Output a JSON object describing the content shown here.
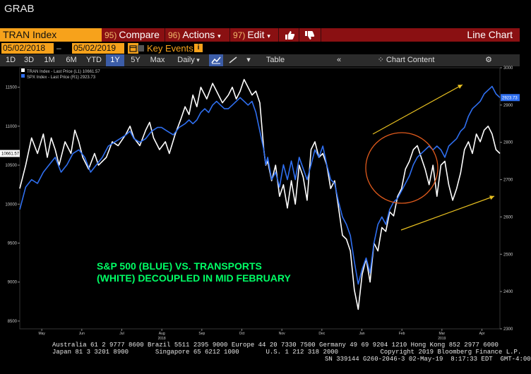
{
  "window": {
    "title": "GRAB"
  },
  "toolbar": {
    "ticker": "TRAN Index",
    "compare": {
      "num": "95)",
      "label": "Compare"
    },
    "actions": {
      "num": "96)",
      "label": "Actions"
    },
    "edit": {
      "num": "97)",
      "label": "Edit"
    },
    "chart_mode": "Line Chart"
  },
  "range": {
    "start": "05/02/2018",
    "end": "05/02/2019",
    "key_events": "Key Events"
  },
  "periods": [
    "1D",
    "3D",
    "1M",
    "6M",
    "YTD",
    "1Y",
    "5Y",
    "Max"
  ],
  "active_period": "1Y",
  "frequency": "Daily",
  "table_label": "Table",
  "chart_content_label": "Chart Content",
  "colors": {
    "tran": "#ffffff",
    "spx": "#2f6ff0",
    "annotation": "#00ff66",
    "arrow": "#e8c020",
    "circle": "#e05a1c",
    "menu_bar": "#8a1012",
    "ticker_bg": "#f7a21b"
  },
  "chart_data": {
    "type": "line",
    "legend": [
      "TRAN Index - Last Price (L1) 10661.57",
      "SPX Index - Last Price (R1) 2923.73"
    ],
    "x_labels": [
      "May",
      "Jun",
      "Jul",
      "Aug",
      "Sep",
      "Oct",
      "Nov",
      "Dec",
      "Jan",
      "Feb",
      "Mar",
      "Apr"
    ],
    "year_labels": [
      {
        "after": "Aug",
        "text": "2018"
      },
      {
        "after": "Mar",
        "text": "2019"
      }
    ],
    "left_axis": {
      "ticks": [
        8500,
        9000,
        9500,
        10000,
        10500,
        11000,
        11500
      ],
      "range": [
        8400,
        11750
      ],
      "last_label": "10661.57"
    },
    "right_axis": {
      "ticks": [
        2300,
        2400,
        2500,
        2600,
        2700,
        2800,
        2900,
        3000
      ],
      "range": [
        2300,
        3000
      ],
      "last_label": "2923.73"
    },
    "series": [
      {
        "name": "TRAN Index",
        "axis": "left",
        "points": [
          [
            0,
            10200
          ],
          [
            1.5,
            10500
          ],
          [
            3,
            10850
          ],
          [
            4.5,
            10650
          ],
          [
            6,
            10900
          ],
          [
            7,
            10600
          ],
          [
            8,
            10850
          ],
          [
            9,
            10700
          ],
          [
            10,
            10500
          ],
          [
            11.5,
            10800
          ],
          [
            13,
            10650
          ],
          [
            14,
            10950
          ],
          [
            15,
            10800
          ],
          [
            16,
            10600
          ],
          [
            17.5,
            10450
          ],
          [
            19,
            10650
          ],
          [
            20,
            10500
          ],
          [
            22,
            10600
          ],
          [
            23.5,
            10800
          ],
          [
            25,
            10750
          ],
          [
            27,
            10900
          ],
          [
            28,
            11000
          ],
          [
            29,
            10850
          ],
          [
            30.5,
            10750
          ],
          [
            32,
            10950
          ],
          [
            33,
            11050
          ],
          [
            34,
            10850
          ],
          [
            35.5,
            10700
          ],
          [
            37,
            10800
          ],
          [
            38,
            10650
          ],
          [
            39.5,
            10900
          ],
          [
            41,
            11100
          ],
          [
            42,
            11250
          ],
          [
            43,
            11150
          ],
          [
            44,
            11400
          ],
          [
            45,
            11250
          ],
          [
            46,
            11500
          ],
          [
            47.5,
            11350
          ],
          [
            49,
            11550
          ],
          [
            50,
            11450
          ],
          [
            51.5,
            11300
          ],
          [
            53,
            11400
          ],
          [
            54,
            11500
          ],
          [
            55,
            11350
          ],
          [
            56,
            11450
          ],
          [
            57,
            11600
          ],
          [
            58,
            11500
          ],
          [
            59,
            11400
          ],
          [
            60,
            11450
          ],
          [
            61,
            11300
          ],
          [
            62,
            10700
          ],
          [
            62.5,
            10500
          ],
          [
            63,
            10550
          ],
          [
            64,
            10300
          ],
          [
            65,
            10500
          ],
          [
            66,
            10100
          ],
          [
            67,
            10250
          ],
          [
            68,
            9950
          ],
          [
            69,
            10300
          ],
          [
            70,
            10000
          ],
          [
            71,
            10500
          ],
          [
            72,
            10350
          ],
          [
            73,
            10050
          ],
          [
            74,
            10700
          ],
          [
            75,
            10800
          ],
          [
            76,
            10600
          ],
          [
            77,
            10650
          ],
          [
            78,
            10500
          ],
          [
            79,
            10200
          ],
          [
            80,
            10300
          ],
          [
            81,
            9950
          ],
          [
            82,
            9600
          ],
          [
            83,
            9550
          ],
          [
            84,
            9400
          ],
          [
            85,
            8900
          ],
          [
            86,
            8650
          ],
          [
            87,
            9100
          ],
          [
            88,
            9300
          ],
          [
            89,
            9000
          ],
          [
            90,
            9500
          ],
          [
            91,
            9400
          ],
          [
            92,
            9700
          ],
          [
            93,
            9650
          ],
          [
            94,
            9900
          ],
          [
            95,
            9850
          ],
          [
            96,
            10100
          ],
          [
            97,
            10200
          ],
          [
            98,
            10450
          ],
          [
            99,
            10550
          ],
          [
            100,
            10700
          ],
          [
            101,
            10750
          ],
          [
            102,
            10600
          ],
          [
            103,
            10450
          ],
          [
            104,
            10250
          ],
          [
            105,
            10500
          ],
          [
            106,
            10100
          ],
          [
            107,
            10500
          ],
          [
            108,
            10550
          ],
          [
            109,
            10250
          ],
          [
            110,
            10050
          ],
          [
            111,
            10200
          ],
          [
            112,
            10400
          ],
          [
            113,
            10700
          ],
          [
            114,
            10800
          ],
          [
            115,
            10650
          ],
          [
            116,
            10900
          ],
          [
            117,
            10800
          ],
          [
            118,
            10950
          ],
          [
            119,
            11000
          ],
          [
            120,
            10900
          ],
          [
            121,
            10700
          ],
          [
            122,
            10650
          ]
        ]
      },
      {
        "name": "SPX Index",
        "axis": "right",
        "points": [
          [
            0,
            2620
          ],
          [
            1.5,
            2680
          ],
          [
            3,
            2700
          ],
          [
            4.5,
            2690
          ],
          [
            6,
            2720
          ],
          [
            7.5,
            2740
          ],
          [
            9,
            2760
          ],
          [
            10.5,
            2720
          ],
          [
            12,
            2740
          ],
          [
            13.5,
            2770
          ],
          [
            15,
            2780
          ],
          [
            16.5,
            2760
          ],
          [
            18,
            2720
          ],
          [
            19.5,
            2740
          ],
          [
            21,
            2760
          ],
          [
            22.5,
            2790
          ],
          [
            24,
            2800
          ],
          [
            25.5,
            2810
          ],
          [
            27,
            2820
          ],
          [
            28,
            2830
          ],
          [
            29,
            2810
          ],
          [
            30.5,
            2800
          ],
          [
            32,
            2810
          ],
          [
            33.5,
            2830
          ],
          [
            35,
            2840
          ],
          [
            36,
            2840
          ],
          [
            37.5,
            2830
          ],
          [
            39,
            2820
          ],
          [
            40.5,
            2840
          ],
          [
            42,
            2850
          ],
          [
            43,
            2860
          ],
          [
            44,
            2850
          ],
          [
            45,
            2860
          ],
          [
            46,
            2880
          ],
          [
            47,
            2890
          ],
          [
            48,
            2880
          ],
          [
            49,
            2900
          ],
          [
            50,
            2910
          ],
          [
            51,
            2900
          ],
          [
            52,
            2890
          ],
          [
            53,
            2890
          ],
          [
            54,
            2900
          ],
          [
            55,
            2910
          ],
          [
            56,
            2920
          ],
          [
            57,
            2910
          ],
          [
            58,
            2900
          ],
          [
            59,
            2910
          ],
          [
            60,
            2880
          ],
          [
            61,
            2830
          ],
          [
            62,
            2780
          ],
          [
            62.5,
            2740
          ],
          [
            63,
            2760
          ],
          [
            64,
            2700
          ],
          [
            65,
            2720
          ],
          [
            66,
            2680
          ],
          [
            67,
            2740
          ],
          [
            68,
            2700
          ],
          [
            69,
            2750
          ],
          [
            70,
            2700
          ],
          [
            71,
            2760
          ],
          [
            72,
            2730
          ],
          [
            73,
            2700
          ],
          [
            74,
            2740
          ],
          [
            75,
            2780
          ],
          [
            76,
            2760
          ],
          [
            77,
            2790
          ],
          [
            78,
            2740
          ],
          [
            79,
            2700
          ],
          [
            80,
            2690
          ],
          [
            81,
            2640
          ],
          [
            82,
            2600
          ],
          [
            83,
            2580
          ],
          [
            84,
            2550
          ],
          [
            85,
            2480
          ],
          [
            86,
            2420
          ],
          [
            87,
            2460
          ],
          [
            88,
            2490
          ],
          [
            89,
            2450
          ],
          [
            90,
            2530
          ],
          [
            91,
            2580
          ],
          [
            92,
            2600
          ],
          [
            93,
            2580
          ],
          [
            94,
            2620
          ],
          [
            95,
            2640
          ],
          [
            96,
            2650
          ],
          [
            97,
            2670
          ],
          [
            98,
            2690
          ],
          [
            99,
            2710
          ],
          [
            100,
            2740
          ],
          [
            101,
            2760
          ],
          [
            102,
            2770
          ],
          [
            103,
            2780
          ],
          [
            104,
            2790
          ],
          [
            105,
            2780
          ],
          [
            106,
            2790
          ],
          [
            107,
            2780
          ],
          [
            108,
            2760
          ],
          [
            109,
            2790
          ],
          [
            110,
            2800
          ],
          [
            111,
            2810
          ],
          [
            112,
            2830
          ],
          [
            113,
            2840
          ],
          [
            114,
            2870
          ],
          [
            115,
            2890
          ],
          [
            116,
            2900
          ],
          [
            117,
            2910
          ],
          [
            118,
            2930
          ],
          [
            119,
            2940
          ],
          [
            120,
            2950
          ],
          [
            121,
            2930
          ],
          [
            122,
            2920
          ]
        ]
      }
    ],
    "annotations": [
      {
        "text": "S&P 500 (BLUE) VS. TRANSPORTS"
      },
      {
        "text": "(WHITE) DECOUPLED IN MID FEBRUARY"
      }
    ]
  },
  "footer": {
    "line1": "Australia 61 2 9777 8600 Brazil 5511 2395 9000 Europe 44 20 7330 7500 Germany 49 69 9204 1210 Hong Kong 852 2977 6000",
    "line2": "Japan 81 3 3201 8900       Singapore 65 6212 1000       U.S. 1 212 318 2000           Copyright 2019 Bloomberg Finance L.P.",
    "line3": "SN 339144 G260-2046-3 02-May-19  8:17:33 EDT  GMT-4:00"
  }
}
